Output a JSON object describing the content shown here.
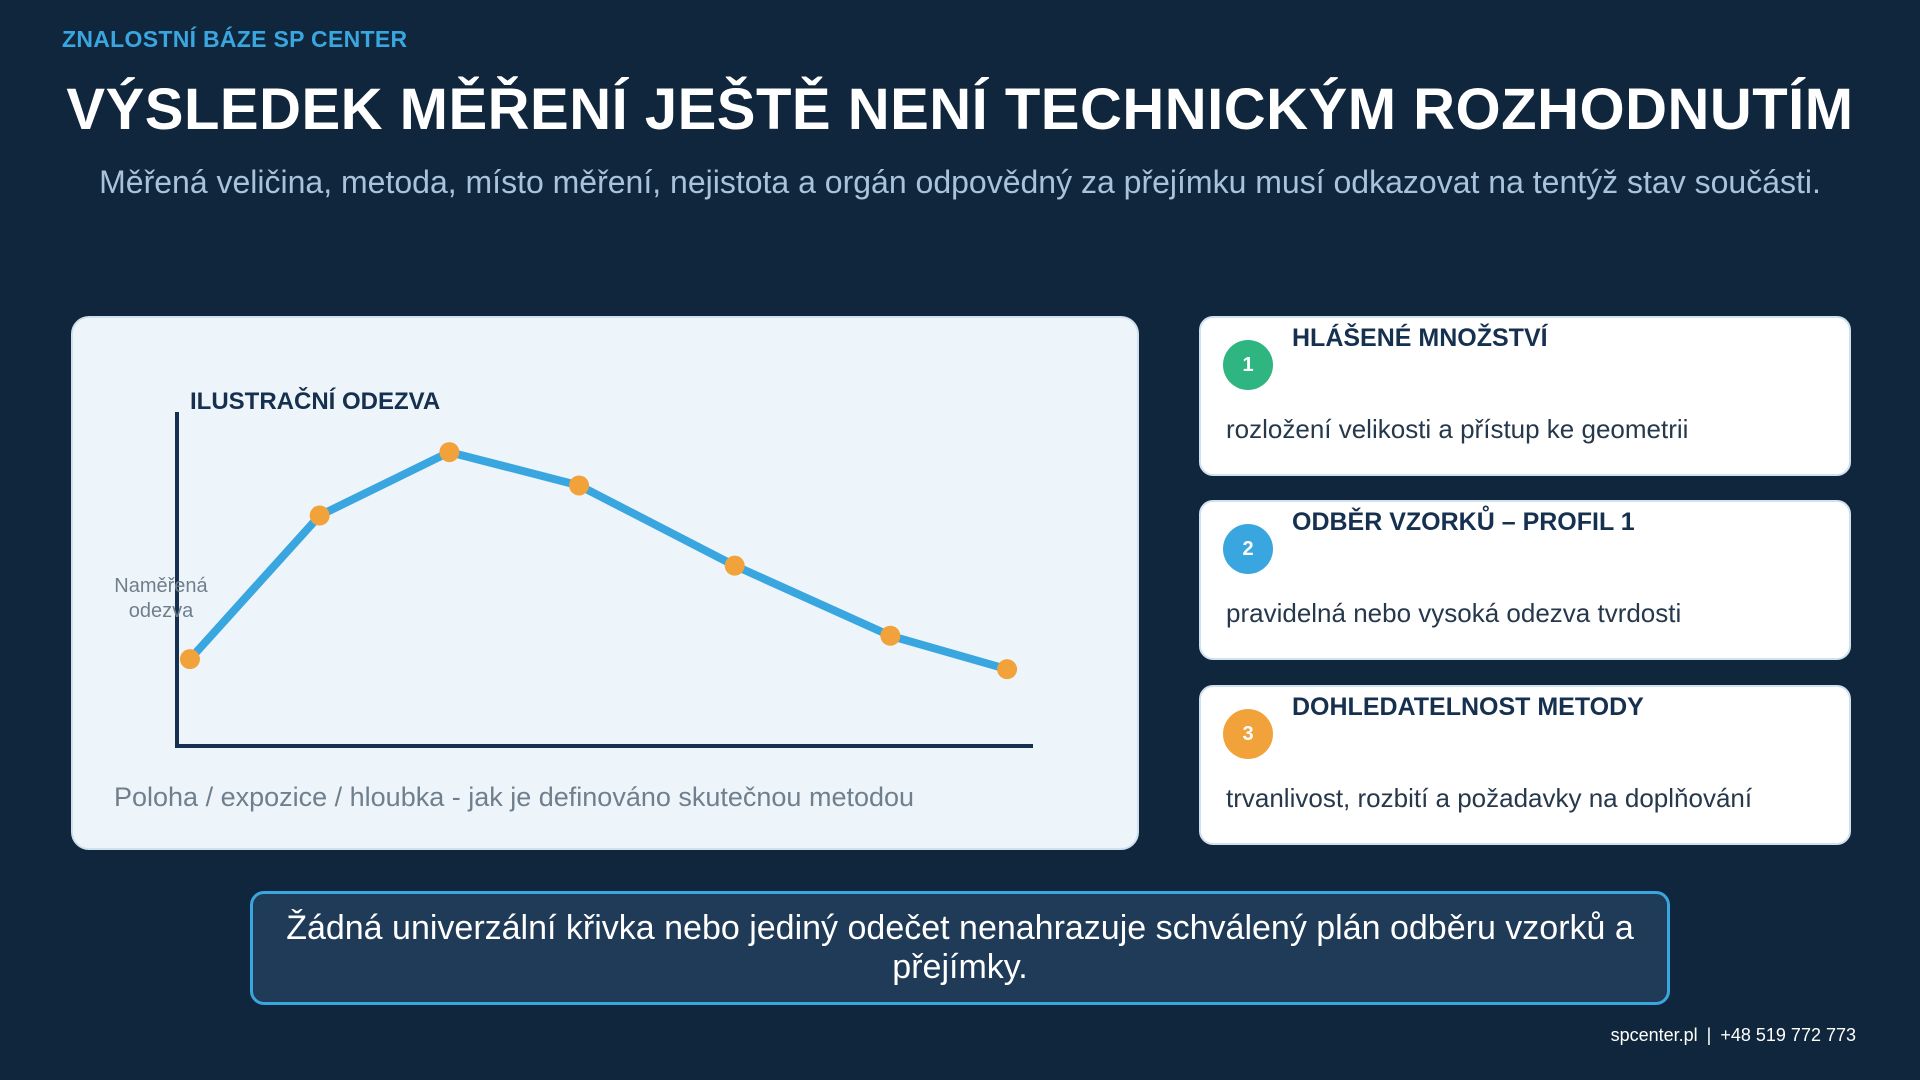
{
  "brand": "ZNALOSTNÍ BÁZE SP CENTER",
  "title": "VÝSLEDEK MĚŘENÍ JEŠTĚ NENÍ TECHNICKÝM ROZHODNUTÍM",
  "subtitle": "Měřená veličina, metoda, místo měření, nejistota a orgán odpovědný za přejímku musí odkazovat na tentýž stav součásti.",
  "colors": {
    "background": "#10263c",
    "accent_blue": "#3aa6df",
    "line": "#3aa6df",
    "point": "#f2a23a",
    "axis": "#16304f",
    "badge_1": "#2fb57f",
    "badge_2": "#3aa6df",
    "badge_3": "#f2a23a"
  },
  "chart_data": {
    "type": "line",
    "title": "ILUSTRAČNÍ ODEZVA",
    "ylabel": "Naměřená odezva",
    "xlabel": "Poloha / expozice / hloubka - jak je definováno skutečnou metodou",
    "grid": false,
    "x": [
      0,
      0.5,
      1.0,
      1.5,
      2.1,
      2.7,
      3.15
    ],
    "values": [
      0.26,
      0.69,
      0.88,
      0.78,
      0.54,
      0.33,
      0.23
    ],
    "xlim": [
      -0.05,
      3.25
    ],
    "ylim": [
      0,
      1
    ]
  },
  "cards": [
    {
      "number": "1",
      "title": "HLÁŠENÉ MNOŽSTVÍ",
      "description": "rozložení velikosti a přístup ke geometrii"
    },
    {
      "number": "2",
      "title": "ODBĚR VZORKŮ – PROFIL 1",
      "description": "pravidelná nebo vysoká odezva tvrdosti"
    },
    {
      "number": "3",
      "title": "DOHLEDATELNOST METODY",
      "description": "trvanlivost, rozbití a požadavky na doplňování"
    }
  ],
  "callout": "Žádná univerzální křivka nebo jediný odečet nenahrazuje schválený plán odběru vzorků a přejímky.",
  "footer": {
    "website": "spcenter.pl",
    "separator": "|",
    "phone": "+48 519 772 773"
  }
}
